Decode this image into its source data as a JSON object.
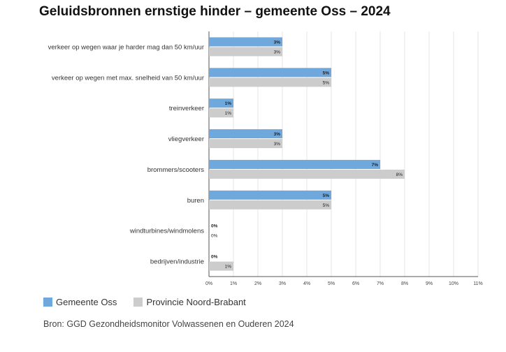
{
  "title": "Geluidsbronnen ernstige hinder – gemeente Oss – 2024",
  "source": "Bron: GGD Gezondheidsmonitor Volwassenen en Ouderen 2024",
  "colors": {
    "gemeente": "#6fa8dc",
    "provincie": "#cccccc",
    "axis": "#555555",
    "grid": "#e6e6e6"
  },
  "chart_data": {
    "type": "bar",
    "orientation": "horizontal",
    "categories": [
      "verkeer op wegen waar je harder mag dan 50 km/uur",
      "verkeer op wegen met max. snelheid van 50 km/uur",
      "treinverkeer",
      "vliegverkeer",
      "brommers/scooters",
      "buren",
      "windturbines/windmolens",
      "bedrijven/industrie"
    ],
    "series": [
      {
        "name": "Gemeente Oss",
        "values": [
          3,
          5,
          1,
          3,
          7,
          5,
          0,
          0
        ],
        "labels": [
          "3%",
          "5%",
          "1%",
          "3%",
          "7%",
          "5%",
          "0%",
          "0%"
        ]
      },
      {
        "name": "Provincie Noord-Brabant",
        "values": [
          3,
          5,
          1,
          3,
          8,
          5,
          0,
          1
        ],
        "labels": [
          "3%",
          "5%",
          "1%",
          "3%",
          "8%",
          "5%",
          "0%",
          "1%"
        ]
      }
    ],
    "xlim": [
      0,
      11
    ],
    "xticks": [
      "0%",
      "1%",
      "2%",
      "3%",
      "4%",
      "5%",
      "6%",
      "7%",
      "8%",
      "9%",
      "10%",
      "11%"
    ],
    "grid": true,
    "legend": "bottom-left"
  }
}
